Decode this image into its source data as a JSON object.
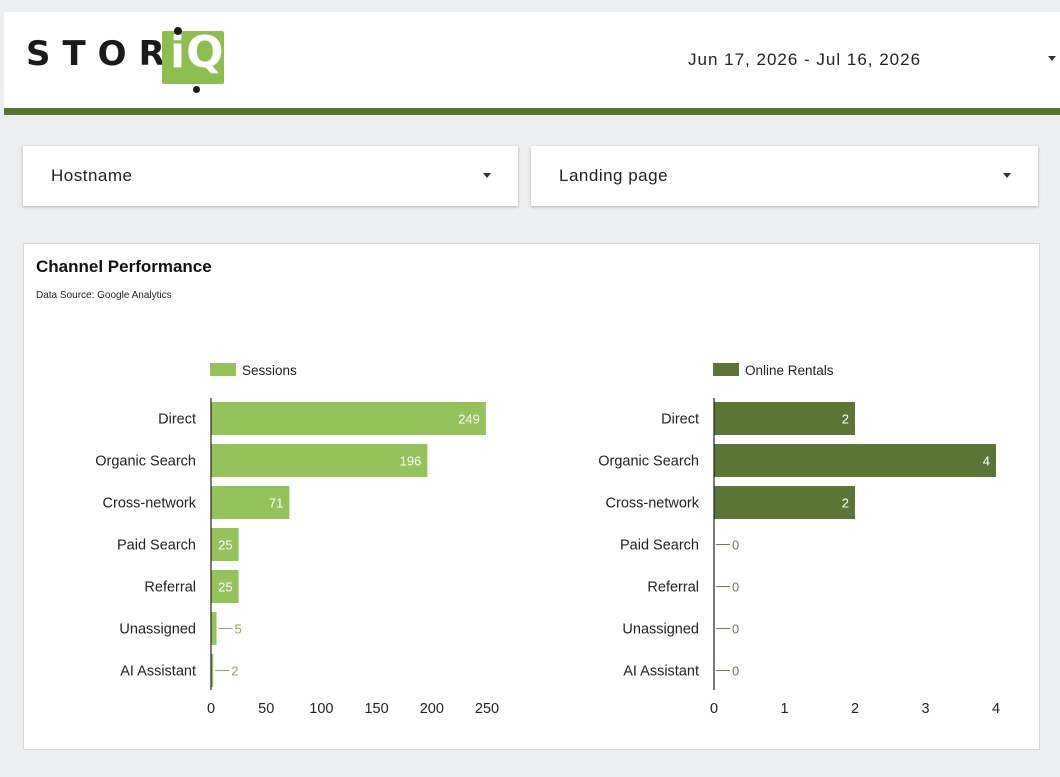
{
  "header": {
    "logo_text": "STOR",
    "logo_mark": "iQ",
    "date_range": "Jun 17, 2026 - Jul 16, 2026"
  },
  "filters": [
    {
      "label": "Hostname"
    },
    {
      "label": "Landing page"
    }
  ],
  "panel": {
    "title": "Channel Performance",
    "source": "Data Source: Google Analytics"
  },
  "colors": {
    "sessions": "#93c35a",
    "rentals": "#5b7536",
    "brand_bar": "#5b7530"
  },
  "chart_data": [
    {
      "type": "bar",
      "orientation": "horizontal",
      "categories": [
        "Direct",
        "Organic Search",
        "Cross-network",
        "Paid Search",
        "Referral",
        "Unassigned",
        "AI Assistant"
      ],
      "series": [
        {
          "name": "Sessions",
          "values": [
            249,
            196,
            71,
            25,
            25,
            5,
            2
          ]
        }
      ],
      "xlim": [
        0,
        250
      ],
      "xticks": [
        0,
        50,
        100,
        150,
        200,
        250
      ],
      "legend": "top-left",
      "grid": false
    },
    {
      "type": "bar",
      "orientation": "horizontal",
      "categories": [
        "Direct",
        "Organic Search",
        "Cross-network",
        "Paid Search",
        "Referral",
        "Unassigned",
        "AI Assistant"
      ],
      "series": [
        {
          "name": "Online Rentals",
          "values": [
            2,
            4,
            2,
            0,
            0,
            0,
            0
          ]
        }
      ],
      "xlim": [
        0,
        4
      ],
      "xticks": [
        0,
        1,
        2,
        3,
        4
      ],
      "legend": "top-left",
      "grid": false
    }
  ]
}
